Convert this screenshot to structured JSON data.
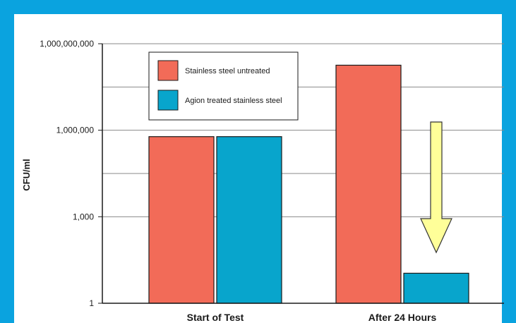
{
  "chart_data": {
    "type": "bar",
    "categories": [
      "Start of Test",
      "After 24 Hours"
    ],
    "series": [
      {
        "name": "Stainless steel untreated",
        "values": [
          600000,
          180000000
        ],
        "color": "#f26b58"
      },
      {
        "name": "Agion treated stainless steel",
        "values": [
          600000,
          11
        ],
        "color": "#08a5cc"
      }
    ],
    "ylabel": "CFU/ml",
    "yscale": "log",
    "ylim": [
      1,
      1000000000
    ],
    "yticks": [
      {
        "value": 1,
        "label": "1"
      },
      {
        "value": 1000,
        "label": "1,000"
      },
      {
        "value": 1000000,
        "label": "1,000,000"
      },
      {
        "value": 1000000000,
        "label": "1,000,000,000"
      }
    ],
    "grid_values": [
      1000,
      31623,
      1000000,
      31622777
    ],
    "grid": true,
    "legend": "top-left",
    "annotation": {
      "type": "arrow",
      "direction": "down",
      "color": "#ffff99"
    }
  }
}
